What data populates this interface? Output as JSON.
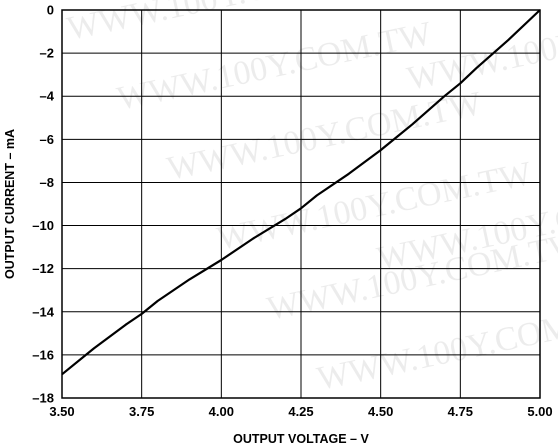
{
  "watermark": "WWW.100Y.COM.TW",
  "chart_data": {
    "type": "line",
    "title": "",
    "xlabel": "OUTPUT VOLTAGE – V",
    "ylabel": "OUTPUT CURRENT – mA",
    "xlim": [
      3.5,
      5.0
    ],
    "ylim": [
      -18,
      0
    ],
    "x_ticks": [
      3.5,
      3.75,
      4.0,
      4.25,
      4.5,
      4.75,
      5.0
    ],
    "x_tick_labels": [
      "3.50",
      "3.75",
      "4.00",
      "4.25",
      "4.50",
      "4.75",
      "5.00"
    ],
    "y_ticks": [
      0,
      -2,
      -4,
      -6,
      -8,
      -10,
      -12,
      -14,
      -16,
      -18
    ],
    "y_tick_labels": [
      "0",
      "–2",
      "–4",
      "–6",
      "–8",
      "–10",
      "–12",
      "–14",
      "–16",
      "–18"
    ],
    "grid": true,
    "series": [
      {
        "color": "#000000",
        "x": [
          3.5,
          3.6,
          3.7,
          3.75,
          3.8,
          3.9,
          4.0,
          4.1,
          4.2,
          4.25,
          4.3,
          4.4,
          4.5,
          4.6,
          4.7,
          4.75,
          4.8,
          4.9,
          5.0
        ],
        "y": [
          -16.9,
          -15.7,
          -14.6,
          -14.1,
          -13.5,
          -12.5,
          -11.6,
          -10.6,
          -9.7,
          -9.2,
          -8.6,
          -7.6,
          -6.5,
          -5.3,
          -4.0,
          -3.4,
          -2.7,
          -1.4,
          0
        ]
      }
    ]
  }
}
